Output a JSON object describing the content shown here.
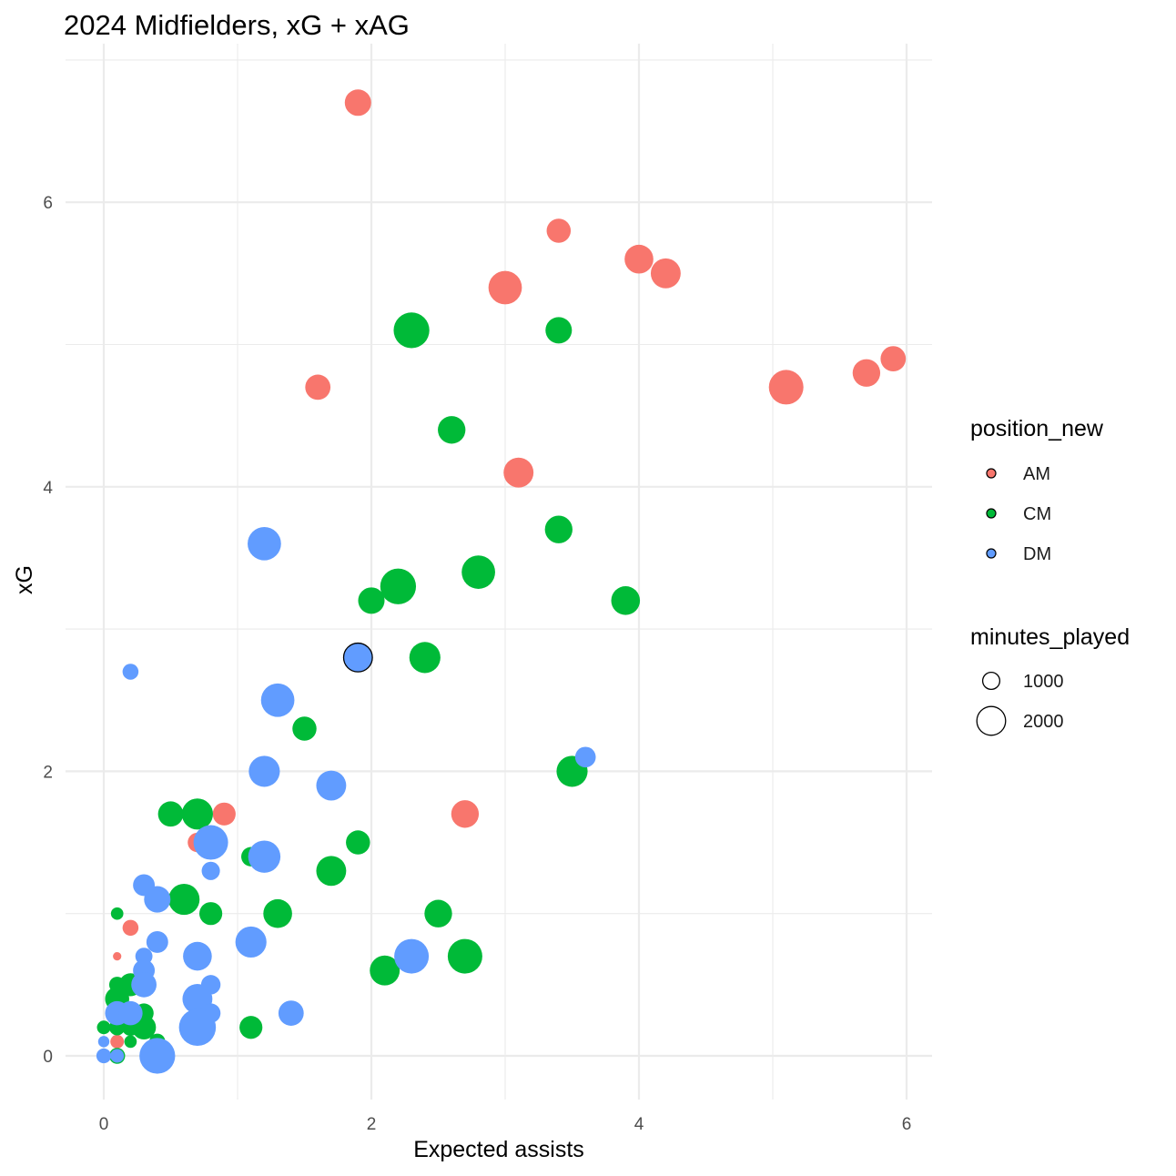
{
  "chart_data": {
    "type": "scatter",
    "title": "2024 Midfielders, xG + xAG",
    "xlabel": "Expected assists",
    "ylabel": "xG",
    "xlim": [
      -0.3,
      6.2
    ],
    "ylim": [
      -0.3,
      7.0
    ],
    "x_ticks": [
      0,
      2,
      4,
      6
    ],
    "y_ticks": [
      0,
      2,
      4,
      6
    ],
    "grid": true,
    "legend_position": "right",
    "color_legend": {
      "title": "position_new",
      "entries": [
        {
          "label": "AM",
          "color": "#F8766D"
        },
        {
          "label": "CM",
          "color": "#00BA38"
        },
        {
          "label": "DM",
          "color": "#619CFF"
        }
      ]
    },
    "size_legend": {
      "title": "minutes_played",
      "entries": [
        {
          "label": "1000",
          "value": 1000
        },
        {
          "label": "2000",
          "value": 2000
        }
      ]
    },
    "highlighted_point": {
      "group": "DM",
      "x": 1.9,
      "y": 2.8,
      "minutes": 2000
    },
    "series": [
      {
        "name": "AM",
        "color": "#F8766D",
        "points": [
          {
            "x": 1.9,
            "y": 6.7,
            "minutes": 1800
          },
          {
            "x": 3.4,
            "y": 5.8,
            "minutes": 1600
          },
          {
            "x": 4.0,
            "y": 5.6,
            "minutes": 2000
          },
          {
            "x": 4.2,
            "y": 5.5,
            "minutes": 2100
          },
          {
            "x": 3.0,
            "y": 5.4,
            "minutes": 2400
          },
          {
            "x": 1.6,
            "y": 4.7,
            "minutes": 1700
          },
          {
            "x": 5.1,
            "y": 4.7,
            "minutes": 2500
          },
          {
            "x": 5.7,
            "y": 4.8,
            "minutes": 1900
          },
          {
            "x": 5.9,
            "y": 4.9,
            "minutes": 1700
          },
          {
            "x": 3.1,
            "y": 4.1,
            "minutes": 2100
          },
          {
            "x": 2.7,
            "y": 1.7,
            "minutes": 1900
          },
          {
            "x": 0.9,
            "y": 1.7,
            "minutes": 1500
          },
          {
            "x": 0.7,
            "y": 1.5,
            "minutes": 1200
          },
          {
            "x": 0.5,
            "y": 1.1,
            "minutes": 500
          },
          {
            "x": 0.2,
            "y": 0.9,
            "minutes": 900
          },
          {
            "x": 0.1,
            "y": 0.7,
            "minutes": 250
          },
          {
            "x": 0.1,
            "y": 0.1,
            "minutes": 700
          },
          {
            "x": 0.0,
            "y": 0.2,
            "minutes": 400
          }
        ]
      },
      {
        "name": "CM",
        "color": "#00BA38",
        "points": [
          {
            "x": 2.3,
            "y": 5.1,
            "minutes": 2600
          },
          {
            "x": 3.4,
            "y": 5.1,
            "minutes": 1800
          },
          {
            "x": 2.6,
            "y": 4.4,
            "minutes": 1900
          },
          {
            "x": 3.4,
            "y": 3.7,
            "minutes": 1900
          },
          {
            "x": 2.8,
            "y": 3.4,
            "minutes": 2400
          },
          {
            "x": 2.2,
            "y": 3.3,
            "minutes": 2600
          },
          {
            "x": 2.0,
            "y": 3.2,
            "minutes": 1800
          },
          {
            "x": 3.9,
            "y": 3.2,
            "minutes": 2000
          },
          {
            "x": 2.4,
            "y": 2.8,
            "minutes": 2200
          },
          {
            "x": 1.5,
            "y": 2.3,
            "minutes": 1600
          },
          {
            "x": 3.5,
            "y": 2.0,
            "minutes": 2200
          },
          {
            "x": 0.5,
            "y": 1.7,
            "minutes": 1700
          },
          {
            "x": 0.7,
            "y": 1.7,
            "minutes": 2200
          },
          {
            "x": 1.9,
            "y": 1.5,
            "minutes": 1600
          },
          {
            "x": 1.1,
            "y": 1.4,
            "minutes": 1200
          },
          {
            "x": 1.7,
            "y": 1.3,
            "minutes": 2100
          },
          {
            "x": 0.6,
            "y": 1.1,
            "minutes": 2200
          },
          {
            "x": 0.8,
            "y": 1.0,
            "minutes": 1500
          },
          {
            "x": 1.3,
            "y": 1.0,
            "minutes": 2000
          },
          {
            "x": 2.5,
            "y": 1.0,
            "minutes": 1900
          },
          {
            "x": 0.1,
            "y": 1.0,
            "minutes": 600
          },
          {
            "x": 2.7,
            "y": 0.7,
            "minutes": 2500
          },
          {
            "x": 2.1,
            "y": 0.6,
            "minutes": 2100
          },
          {
            "x": 0.1,
            "y": 0.5,
            "minutes": 900
          },
          {
            "x": 0.2,
            "y": 0.5,
            "minutes": 1500
          },
          {
            "x": 0.1,
            "y": 0.4,
            "minutes": 1600
          },
          {
            "x": 0.3,
            "y": 0.3,
            "minutes": 1200
          },
          {
            "x": 0.2,
            "y": 0.2,
            "minutes": 1000
          },
          {
            "x": 0.3,
            "y": 0.2,
            "minutes": 1600
          },
          {
            "x": 1.1,
            "y": 0.2,
            "minutes": 1500
          },
          {
            "x": 0.0,
            "y": 0.2,
            "minutes": 700
          },
          {
            "x": 0.1,
            "y": 0.2,
            "minutes": 900
          },
          {
            "x": 0.2,
            "y": 0.1,
            "minutes": 600
          },
          {
            "x": 0.4,
            "y": 0.1,
            "minutes": 900
          },
          {
            "x": 0.1,
            "y": 0.0,
            "minutes": 900
          }
        ]
      },
      {
        "name": "DM",
        "color": "#619CFF",
        "points": [
          {
            "x": 1.2,
            "y": 3.6,
            "minutes": 2400
          },
          {
            "x": 1.9,
            "y": 2.8,
            "minutes": 2000
          },
          {
            "x": 0.2,
            "y": 2.7,
            "minutes": 900
          },
          {
            "x": 1.3,
            "y": 2.5,
            "minutes": 2400
          },
          {
            "x": 3.6,
            "y": 2.1,
            "minutes": 1300
          },
          {
            "x": 1.2,
            "y": 2.0,
            "minutes": 2200
          },
          {
            "x": 1.7,
            "y": 1.9,
            "minutes": 2100
          },
          {
            "x": 0.8,
            "y": 1.5,
            "minutes": 2500
          },
          {
            "x": 1.2,
            "y": 1.4,
            "minutes": 2300
          },
          {
            "x": 0.8,
            "y": 1.3,
            "minutes": 1100
          },
          {
            "x": 0.3,
            "y": 1.2,
            "minutes": 1400
          },
          {
            "x": 0.4,
            "y": 1.1,
            "minutes": 1800
          },
          {
            "x": 0.4,
            "y": 0.8,
            "minutes": 1400
          },
          {
            "x": 1.1,
            "y": 0.8,
            "minutes": 2200
          },
          {
            "x": 2.3,
            "y": 0.7,
            "minutes": 2500
          },
          {
            "x": 0.7,
            "y": 0.7,
            "minutes": 2000
          },
          {
            "x": 0.3,
            "y": 0.7,
            "minutes": 1000
          },
          {
            "x": 0.3,
            "y": 0.6,
            "minutes": 1400
          },
          {
            "x": 0.3,
            "y": 0.5,
            "minutes": 1700
          },
          {
            "x": 0.8,
            "y": 0.5,
            "minutes": 1200
          },
          {
            "x": 0.7,
            "y": 0.4,
            "minutes": 2100
          },
          {
            "x": 0.1,
            "y": 0.3,
            "minutes": 1600
          },
          {
            "x": 0.2,
            "y": 0.3,
            "minutes": 1600
          },
          {
            "x": 0.8,
            "y": 0.3,
            "minutes": 1200
          },
          {
            "x": 1.4,
            "y": 0.3,
            "minutes": 1700
          },
          {
            "x": 0.7,
            "y": 0.2,
            "minutes": 2700
          },
          {
            "x": 0.0,
            "y": 0.1,
            "minutes": 500
          },
          {
            "x": 0.0,
            "y": 0.0,
            "minutes": 800
          },
          {
            "x": 0.4,
            "y": 0.0,
            "minutes": 2600
          },
          {
            "x": 0.1,
            "y": 0.0,
            "minutes": 700
          }
        ]
      }
    ]
  }
}
